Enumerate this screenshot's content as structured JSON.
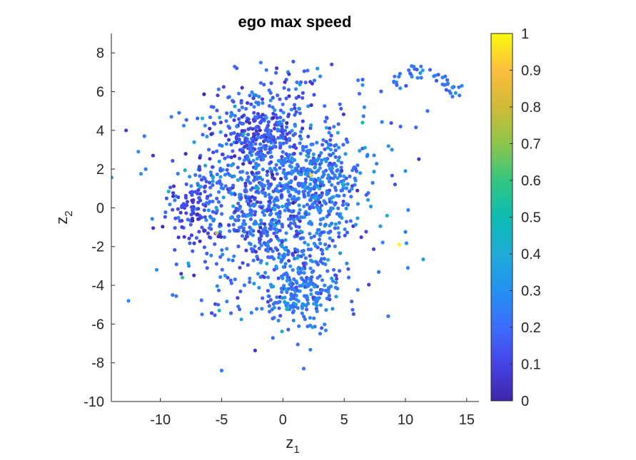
{
  "chart_data": {
    "type": "scatter",
    "title": "ego max speed",
    "xlabel": {
      "base": "z",
      "subscript": "1"
    },
    "ylabel": {
      "base": "z",
      "subscript": "2"
    },
    "xlim": [
      -14,
      16
    ],
    "ylim": [
      -10,
      9
    ],
    "xticks": [
      "-10",
      "-5",
      "0",
      "5",
      "10",
      "15"
    ],
    "xtick_values": [
      -10,
      -5,
      0,
      5,
      10,
      15
    ],
    "yticks": [
      "8",
      "6",
      "4",
      "2",
      "0",
      "-2",
      "-4",
      "-6",
      "-8",
      "-10"
    ],
    "ytick_values": [
      8,
      6,
      4,
      2,
      0,
      -2,
      -4,
      -6,
      -8,
      -10
    ],
    "grid": false,
    "colormap": "parula",
    "colorbar": {
      "clim": [
        0,
        1
      ],
      "ticks": [
        "1",
        "0.9",
        "0.8",
        "0.7",
        "0.6",
        "0.5",
        "0.4",
        "0.3",
        "0.2",
        "0.1",
        "0"
      ],
      "tick_values": [
        1,
        0.9,
        0.8,
        0.7,
        0.6,
        0.5,
        0.4,
        0.3,
        0.2,
        0.1,
        0
      ],
      "stops": [
        "#3e26a8",
        "#4543e6",
        "#3d6cfe",
        "#2491f1",
        "#1fabd6",
        "#0dbbb3",
        "#33c681",
        "#8ec54b",
        "#d0ba36",
        "#fdbe3d",
        "#f8fa0d"
      ]
    },
    "clusters": [
      {
        "cx": -0.5,
        "cy": 0.5,
        "sx": 3.6,
        "sy": 2.6,
        "n": 1150,
        "v_mean": 0.2,
        "v_sd": 0.08
      },
      {
        "cx": 1.5,
        "cy": -4.3,
        "sx": 1.2,
        "sy": 0.9,
        "n": 180,
        "v_mean": 0.24,
        "v_sd": 0.06
      },
      {
        "cx": -7.5,
        "cy": 0.0,
        "sx": 1.0,
        "sy": 0.9,
        "n": 90,
        "v_mean": 0.1,
        "v_sd": 0.05
      },
      {
        "cx": -2.0,
        "cy": 3.8,
        "sx": 1.6,
        "sy": 0.7,
        "n": 120,
        "v_mean": 0.12,
        "v_sd": 0.06
      },
      {
        "cx": 3.5,
        "cy": 1.5,
        "sx": 1.8,
        "sy": 1.2,
        "n": 140,
        "v_mean": 0.26,
        "v_sd": 0.05
      },
      {
        "cx": -1.0,
        "cy": 5.8,
        "sx": 2.5,
        "sy": 0.6,
        "n": 60,
        "v_mean": 0.18,
        "v_sd": 0.07
      }
    ],
    "arc": {
      "x_from": 9.0,
      "x_to": 14.5,
      "y_base": 6.4,
      "n": 45,
      "v_mean": 0.22,
      "v_sd": 0.06
    },
    "points": [
      {
        "x": -12.8,
        "y": 4.0,
        "v": 0.08
      },
      {
        "x": -12.6,
        "y": -4.8,
        "v": 0.28
      },
      {
        "x": -11.8,
        "y": 2.9,
        "v": 0.3
      },
      {
        "x": -11.3,
        "y": 3.7,
        "v": 0.22
      },
      {
        "x": -11.2,
        "y": 2.0,
        "v": 0.25
      },
      {
        "x": -10.6,
        "y": 2.7,
        "v": 0.05
      },
      {
        "x": -10.3,
        "y": -3.2,
        "v": 0.3
      },
      {
        "x": -9.1,
        "y": 4.7,
        "v": 0.25
      },
      {
        "x": -9.0,
        "y": -4.5,
        "v": 0.22
      },
      {
        "x": -8.3,
        "y": -3.4,
        "v": 0.05
      },
      {
        "x": -8.2,
        "y": -3.6,
        "v": 0.55
      },
      {
        "x": -6.6,
        "y": -5.5,
        "v": 0.25
      },
      {
        "x": -5.4,
        "y": -1.3,
        "v": 0.82
      },
      {
        "x": -5.2,
        "y": -5.3,
        "v": 0.42
      },
      {
        "x": -5.0,
        "y": -8.4,
        "v": 0.24
      },
      {
        "x": -3.2,
        "y": 3.8,
        "v": 0.55
      },
      {
        "x": -1.8,
        "y": 7.5,
        "v": 0.25
      },
      {
        "x": 0.5,
        "y": 6.9,
        "v": 0.08
      },
      {
        "x": 1.7,
        "y": -8.3,
        "v": 0.22
      },
      {
        "x": 2.3,
        "y": 1.7,
        "v": 0.95
      },
      {
        "x": 4.9,
        "y": 1.2,
        "v": 0.45
      },
      {
        "x": 6.5,
        "y": 4.4,
        "v": 0.5
      },
      {
        "x": 6.7,
        "y": 3.1,
        "v": 0.48
      },
      {
        "x": 8.5,
        "y": -0.4,
        "v": 0.45
      },
      {
        "x": 8.9,
        "y": 3.0,
        "v": 0.28
      },
      {
        "x": 9.5,
        "y": -1.9,
        "v": 1.0
      },
      {
        "x": 9.6,
        "y": 4.2,
        "v": 0.18
      },
      {
        "x": 10.0,
        "y": 1.9,
        "v": 0.3
      },
      {
        "x": 10.2,
        "y": -3.1,
        "v": 0.26
      },
      {
        "x": 11.8,
        "y": 5.0,
        "v": 0.22
      },
      {
        "x": 14.6,
        "y": 6.3,
        "v": 0.28
      }
    ]
  }
}
